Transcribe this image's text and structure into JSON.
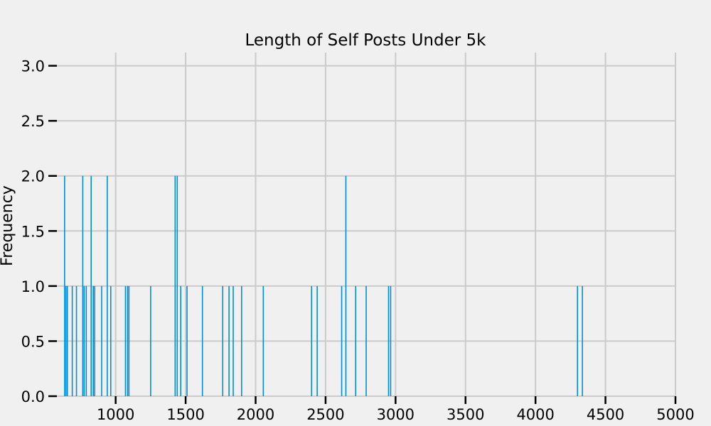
{
  "chart_data": {
    "type": "bar",
    "title": "Length of Self Posts Under 5k",
    "xlabel": "",
    "ylabel": "Frequency",
    "xlim": [
      580,
      5000
    ],
    "ylim": [
      0,
      3.12
    ],
    "xticks": [
      1000,
      1500,
      2000,
      2500,
      3000,
      3500,
      4000,
      4500,
      5000
    ],
    "yticks": [
      0.0,
      0.5,
      1.0,
      1.5,
      2.0,
      2.5,
      3.0
    ],
    "ytick_labels": [
      "0.0",
      "0.5",
      "1.0",
      "1.5",
      "2.0",
      "2.5",
      "3.0"
    ],
    "grid": true,
    "bar_color": "#008fd5",
    "bins": [
      {
        "x": 635,
        "count": 2
      },
      {
        "x": 645,
        "count": 1
      },
      {
        "x": 655,
        "count": 1
      },
      {
        "x": 690,
        "count": 1
      },
      {
        "x": 720,
        "count": 1
      },
      {
        "x": 765,
        "count": 2
      },
      {
        "x": 775,
        "count": 1
      },
      {
        "x": 790,
        "count": 1
      },
      {
        "x": 825,
        "count": 2
      },
      {
        "x": 840,
        "count": 1
      },
      {
        "x": 850,
        "count": 1
      },
      {
        "x": 900,
        "count": 1
      },
      {
        "x": 940,
        "count": 2
      },
      {
        "x": 965,
        "count": 1
      },
      {
        "x": 1070,
        "count": 1
      },
      {
        "x": 1085,
        "count": 1
      },
      {
        "x": 1095,
        "count": 1
      },
      {
        "x": 1250,
        "count": 1
      },
      {
        "x": 1425,
        "count": 2
      },
      {
        "x": 1440,
        "count": 2
      },
      {
        "x": 1465,
        "count": 1
      },
      {
        "x": 1510,
        "count": 1
      },
      {
        "x": 1620,
        "count": 1
      },
      {
        "x": 1765,
        "count": 1
      },
      {
        "x": 1810,
        "count": 1
      },
      {
        "x": 1840,
        "count": 1
      },
      {
        "x": 1900,
        "count": 1
      },
      {
        "x": 2055,
        "count": 1
      },
      {
        "x": 2400,
        "count": 1
      },
      {
        "x": 2440,
        "count": 1
      },
      {
        "x": 2615,
        "count": 1
      },
      {
        "x": 2645,
        "count": 2
      },
      {
        "x": 2715,
        "count": 1
      },
      {
        "x": 2790,
        "count": 1
      },
      {
        "x": 2950,
        "count": 1
      },
      {
        "x": 2965,
        "count": 1
      },
      {
        "x": 4300,
        "count": 1
      },
      {
        "x": 4335,
        "count": 1
      }
    ]
  }
}
